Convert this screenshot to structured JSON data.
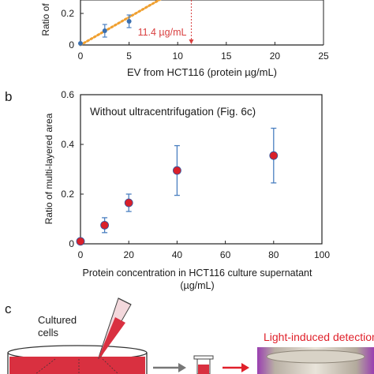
{
  "panels": {
    "b": "b",
    "c": "c"
  },
  "chart_data": [
    {
      "type": "scatter",
      "panel": "a",
      "xlabel": "EV from HCT116 (protein µg/mL)",
      "ylabel": "Ratio of",
      "xlim": [
        0,
        25
      ],
      "xticks": [
        "0",
        "5",
        "10",
        "15",
        "20",
        "25"
      ],
      "yticks_visible": [
        "0.2",
        "0"
      ],
      "points": [
        {
          "x": 0,
          "y": 0.01,
          "err": 0.0
        },
        {
          "x": 2.5,
          "y": 0.09,
          "err": 0.04
        },
        {
          "x": 5,
          "y": 0.15,
          "err": 0.04
        }
      ],
      "fit_line": {
        "from": [
          0,
          0.0
        ],
        "to": [
          8.8,
          0.31
        ],
        "style": "dotted",
        "color": "#f0a030"
      },
      "annotation": {
        "text": "11.4 µg/mL",
        "x": 11.4,
        "color": "#d94040"
      },
      "marker_color": "#3a6fb0"
    },
    {
      "type": "scatter",
      "panel": "b",
      "title": "Without ultracentrifugation (Fig. 6c)",
      "xlabel": "Protein concentration in HCT116 culture supernatant",
      "xlabel2": "(µg/mL)",
      "ylabel": "Ratio of multi-layered area",
      "xlim": [
        0,
        100
      ],
      "ylim": [
        0,
        0.6
      ],
      "xticks": [
        "0",
        "20",
        "40",
        "60",
        "80",
        "100"
      ],
      "yticks": [
        "0",
        "0.2",
        "0.4",
        "0.6"
      ],
      "points": [
        {
          "x": 0,
          "y": 0.01,
          "err": 0.0
        },
        {
          "x": 10,
          "y": 0.075,
          "err": 0.03
        },
        {
          "x": 20,
          "y": 0.165,
          "err": 0.035
        },
        {
          "x": 40,
          "y": 0.295,
          "err": 0.1
        },
        {
          "x": 80,
          "y": 0.355,
          "err": 0.11
        }
      ],
      "marker_color": "#d9202a",
      "errbar_color": "#4a7fc0"
    }
  ],
  "panel_c": {
    "cells_label_1": "Cultured",
    "cells_label_2": "cells",
    "detection_label": "Light-induced detection"
  }
}
